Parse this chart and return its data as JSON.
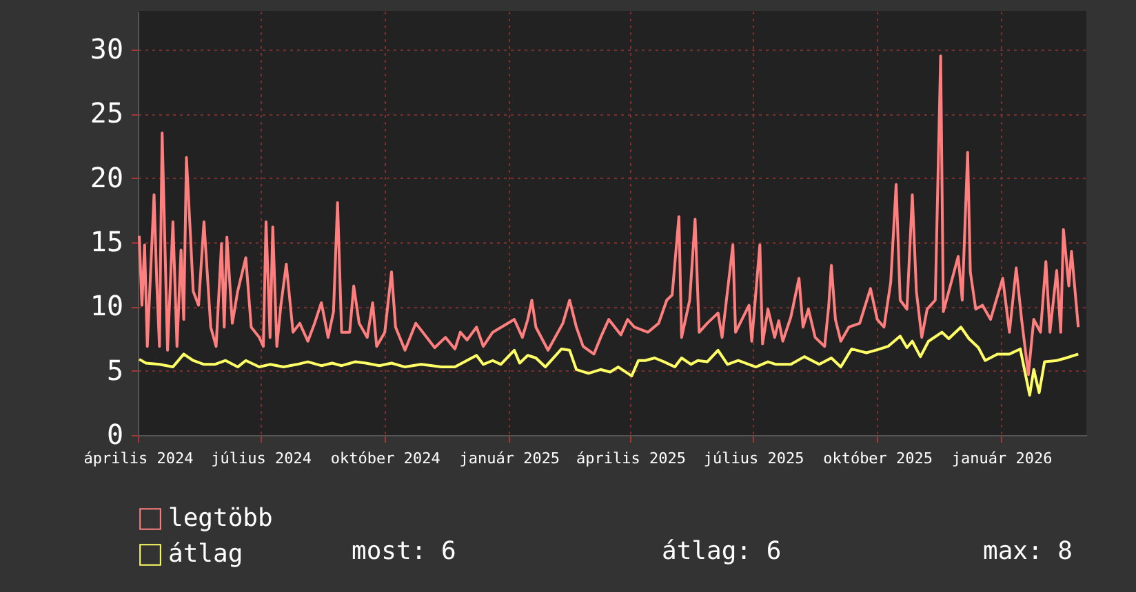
{
  "chart_data": {
    "type": "line",
    "legend": "bottom left",
    "grid": true,
    "marker": "none",
    "line_style": "solid",
    "xlim": [
      "2024-04-01",
      "2026-03-05"
    ],
    "xticks": [
      {
        "value": "2024-04-01",
        "label": "április 2024"
      },
      {
        "value": "2024-07-01",
        "label": "július 2024"
      },
      {
        "value": "2024-10-01",
        "label": "október 2024"
      },
      {
        "value": "2025-01-01",
        "label": "január 2025"
      },
      {
        "value": "2025-04-01",
        "label": "április 2025"
      },
      {
        "value": "2025-07-01",
        "label": "július 2025"
      },
      {
        "value": "2025-10-01",
        "label": "október 2025"
      },
      {
        "value": "2026-01-01",
        "label": "január 2026"
      }
    ],
    "ylim": [
      0,
      33
    ],
    "yticks": [
      0,
      5,
      10,
      15,
      20,
      25,
      30
    ],
    "annotations": [
      "most: 6",
      "átlag: 6",
      "max: 8"
    ],
    "series": [
      {
        "name": "legtöbb",
        "color": "#ff7f7f",
        "x": [
          "2024-04-02",
          "2024-04-04",
          "2024-04-06",
          "2024-04-08",
          "2024-04-13",
          "2024-04-15",
          "2024-04-17",
          "2024-04-19",
          "2024-04-23",
          "2024-04-27",
          "2024-04-30",
          "2024-05-03",
          "2024-05-05",
          "2024-05-07",
          "2024-05-10",
          "2024-05-12",
          "2024-05-16",
          "2024-05-20",
          "2024-05-25",
          "2024-05-29",
          "2024-06-02",
          "2024-06-04",
          "2024-06-06",
          "2024-06-10",
          "2024-06-14",
          "2024-06-20",
          "2024-06-24",
          "2024-06-30",
          "2024-07-03",
          "2024-07-05",
          "2024-07-08",
          "2024-07-10",
          "2024-07-13",
          "2024-07-16",
          "2024-07-20",
          "2024-07-25",
          "2024-07-30",
          "2024-08-05",
          "2024-08-10",
          "2024-08-15",
          "2024-08-20",
          "2024-08-24",
          "2024-08-27",
          "2024-08-30",
          "2024-09-05",
          "2024-09-08",
          "2024-09-12",
          "2024-09-18",
          "2024-09-22",
          "2024-09-25",
          "2024-10-01",
          "2024-10-06",
          "2024-10-09",
          "2024-10-16",
          "2024-10-24",
          "2024-11-07",
          "2024-11-15",
          "2024-11-22",
          "2024-11-26",
          "2024-12-01",
          "2024-12-08",
          "2024-12-13",
          "2024-12-20",
          "2025-01-05",
          "2025-01-11",
          "2025-01-15",
          "2025-01-18",
          "2025-01-21",
          "2025-01-30",
          "2025-02-10",
          "2025-02-15",
          "2025-02-20",
          "2025-02-25",
          "2025-03-05",
          "2025-03-10",
          "2025-03-16",
          "2025-03-25",
          "2025-03-30",
          "2025-04-04",
          "2025-04-14",
          "2025-04-22",
          "2025-04-28",
          "2025-05-02",
          "2025-05-07",
          "2025-05-09",
          "2025-05-15",
          "2025-05-19",
          "2025-05-22",
          "2025-05-28",
          "2025-06-05",
          "2025-06-08",
          "2025-06-16",
          "2025-06-18",
          "2025-06-28",
          "2025-06-30",
          "2025-07-06",
          "2025-07-08",
          "2025-07-12",
          "2025-07-17",
          "2025-07-20",
          "2025-07-23",
          "2025-07-29",
          "2025-08-04",
          "2025-08-07",
          "2025-08-11",
          "2025-08-16",
          "2025-08-23",
          "2025-08-26",
          "2025-08-28",
          "2025-08-31",
          "2025-09-04",
          "2025-09-10",
          "2025-09-18",
          "2025-09-26",
          "2025-10-01",
          "2025-10-06",
          "2025-10-11",
          "2025-10-15",
          "2025-10-18",
          "2025-10-23",
          "2025-10-27",
          "2025-10-30",
          "2025-11-03",
          "2025-11-07",
          "2025-11-13",
          "2025-11-17",
          "2025-11-19",
          "2025-11-30",
          "2025-12-03",
          "2025-12-07",
          "2025-12-09",
          "2025-12-13",
          "2025-12-18",
          "2025-12-24",
          "2026-01-02",
          "2026-01-07",
          "2026-01-12",
          "2026-01-16",
          "2026-01-21",
          "2026-01-25",
          "2026-01-30",
          "2026-02-03",
          "2026-02-06",
          "2026-02-11",
          "2026-02-14",
          "2026-02-16",
          "2026-02-20",
          "2026-02-22",
          "2026-02-27"
        ],
        "values": [
          15.5,
          10.1,
          14.8,
          6.9,
          18.7,
          11.9,
          6.9,
          23.5,
          6.6,
          16.6,
          6.9,
          14.4,
          9.0,
          21.6,
          15.5,
          11.2,
          10.1,
          16.6,
          8.4,
          6.9,
          14.9,
          8.4,
          15.4,
          8.7,
          11.2,
          13.8,
          8.4,
          7.6,
          6.9,
          16.6,
          7.6,
          16.2,
          6.9,
          10.1,
          13.3,
          8.0,
          8.7,
          7.3,
          8.7,
          10.3,
          7.6,
          9.6,
          18.1,
          8.0,
          8.0,
          11.6,
          8.7,
          7.6,
          10.3,
          6.9,
          8.0,
          12.7,
          8.4,
          6.6,
          8.7,
          6.8,
          7.6,
          6.7,
          8.0,
          7.4,
          8.4,
          6.9,
          8.0,
          9.0,
          7.6,
          9.0,
          10.5,
          8.4,
          6.6,
          8.7,
          10.5,
          8.4,
          6.9,
          6.3,
          7.6,
          9.0,
          7.8,
          9.0,
          8.4,
          8.0,
          8.7,
          10.5,
          10.9,
          17.0,
          7.6,
          10.5,
          16.8,
          8.0,
          8.7,
          9.5,
          7.6,
          14.8,
          8.0,
          10.1,
          7.3,
          14.8,
          7.1,
          9.8,
          7.6,
          8.9,
          7.3,
          9.2,
          12.2,
          8.4,
          9.8,
          7.6,
          6.9,
          10.0,
          13.2,
          9.0,
          7.3,
          8.4,
          8.7,
          11.4,
          9.0,
          8.4,
          11.9,
          19.5,
          10.5,
          9.8,
          18.7,
          11.2,
          7.6,
          9.8,
          10.5,
          29.5,
          9.6,
          13.9,
          10.5,
          22.0,
          12.7,
          9.8,
          10.1,
          9.0,
          12.2,
          8.0,
          13.0,
          9.0,
          4.7,
          9.0,
          8.0,
          13.5,
          8.0,
          12.8,
          8.0,
          16.0,
          11.6,
          14.3,
          8.4
        ]
      },
      {
        "name": "átlag",
        "color": "#ffff66",
        "x": [
          "2024-04-02",
          "2024-04-07",
          "2024-04-17",
          "2024-04-27",
          "2024-05-05",
          "2024-05-12",
          "2024-05-20",
          "2024-05-28",
          "2024-06-05",
          "2024-06-14",
          "2024-06-20",
          "2024-06-30",
          "2024-07-08",
          "2024-07-18",
          "2024-07-28",
          "2024-08-05",
          "2024-08-15",
          "2024-08-23",
          "2024-08-30",
          "2024-09-09",
          "2024-09-17",
          "2024-09-27",
          "2024-10-06",
          "2024-10-16",
          "2024-10-28",
          "2024-11-12",
          "2024-11-22",
          "2024-12-08",
          "2024-12-13",
          "2024-12-20",
          "2024-12-26",
          "2025-01-05",
          "2025-01-09",
          "2025-01-15",
          "2025-01-21",
          "2025-01-28",
          "2025-02-09",
          "2025-02-15",
          "2025-02-20",
          "2025-03-01",
          "2025-03-10",
          "2025-03-17",
          "2025-03-23",
          "2025-04-02",
          "2025-04-07",
          "2025-04-12",
          "2025-04-19",
          "2025-04-26",
          "2025-05-04",
          "2025-05-09",
          "2025-05-16",
          "2025-05-21",
          "2025-05-28",
          "2025-06-05",
          "2025-06-12",
          "2025-06-20",
          "2025-07-03",
          "2025-07-12",
          "2025-07-18",
          "2025-07-29",
          "2025-08-08",
          "2025-08-19",
          "2025-08-28",
          "2025-09-04",
          "2025-09-12",
          "2025-09-23",
          "2025-10-03",
          "2025-10-09",
          "2025-10-18",
          "2025-10-23",
          "2025-10-27",
          "2025-11-02",
          "2025-11-08",
          "2025-11-18",
          "2025-11-23",
          "2025-12-02",
          "2025-12-08",
          "2025-12-15",
          "2025-12-20",
          "2025-12-29",
          "2026-01-07",
          "2026-01-15",
          "2026-01-22",
          "2026-01-25",
          "2026-01-29",
          "2026-02-02",
          "2026-02-11",
          "2026-02-18",
          "2026-02-27"
        ],
        "values": [
          5.9,
          5.6,
          5.5,
          5.3,
          6.3,
          5.8,
          5.5,
          5.5,
          5.8,
          5.3,
          5.8,
          5.3,
          5.5,
          5.3,
          5.5,
          5.7,
          5.4,
          5.6,
          5.4,
          5.7,
          5.6,
          5.4,
          5.6,
          5.3,
          5.5,
          5.3,
          5.3,
          6.2,
          5.5,
          5.8,
          5.5,
          6.6,
          5.6,
          6.2,
          6.0,
          5.3,
          6.7,
          6.6,
          5.1,
          4.8,
          5.1,
          4.9,
          5.3,
          4.6,
          5.8,
          5.8,
          6.0,
          5.7,
          5.3,
          6.0,
          5.5,
          5.8,
          5.7,
          6.6,
          5.5,
          5.8,
          5.3,
          5.7,
          5.5,
          5.5,
          6.1,
          5.5,
          6.0,
          5.3,
          6.7,
          6.4,
          6.7,
          6.9,
          7.7,
          6.8,
          7.3,
          6.1,
          7.3,
          8.0,
          7.5,
          8.4,
          7.5,
          6.8,
          5.8,
          6.3,
          6.3,
          6.7,
          3.1,
          5.1,
          3.3,
          5.7,
          5.8,
          6.0,
          6.3
        ]
      }
    ]
  }
}
